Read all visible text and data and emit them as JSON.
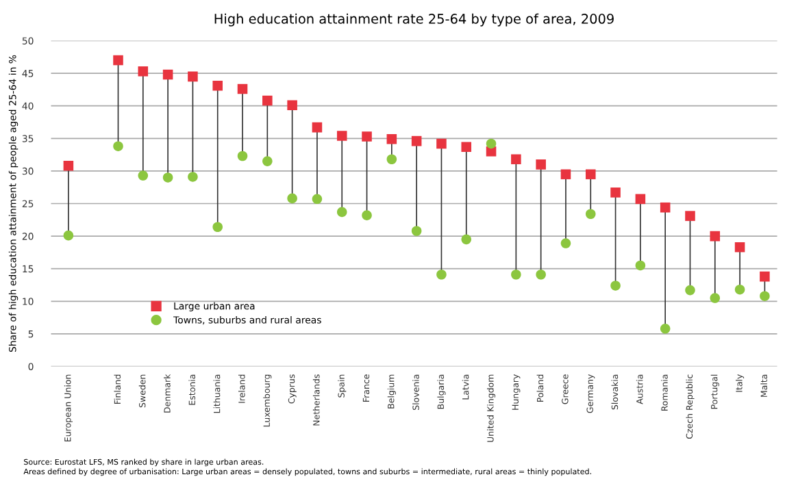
{
  "chart_data": {
    "type": "scatter",
    "title": "High education attainment rate 25-64 by type of area, 2009",
    "ylabel": "Share of high education attainment of people aged 25-64 in %",
    "categories": [
      "European Union",
      null,
      "Finland",
      "Sweden",
      "Denmark",
      "Estonia",
      "Lithuania",
      "Ireland",
      "Luxembourg",
      "Cyprus",
      "Netherlands",
      "Spain",
      "France",
      "Belgium",
      "Slovenia",
      "Bulgaria",
      "Latvia",
      "United Kingdom",
      "Hungary",
      "Poland",
      "Greece",
      "Germany",
      "Slovakia",
      "Austria",
      "Romania",
      "Czech Republic",
      "Portugal",
      "Italy",
      "Malta"
    ],
    "series": [
      {
        "name": "Large urban area",
        "color": "#e8343f",
        "marker": "square",
        "values": [
          30.8,
          null,
          47,
          45.3,
          44.8,
          44.5,
          43.1,
          42.6,
          40.8,
          40.1,
          36.7,
          35.4,
          35.3,
          34.9,
          34.6,
          34.2,
          33.7,
          33,
          31.8,
          31,
          29.5,
          29.5,
          26.7,
          25.7,
          24.4,
          23.1,
          20,
          18.3,
          13.8
        ]
      },
      {
        "name": "Towns, suburbs and rural areas",
        "color": "#8cc63f",
        "marker": "circle",
        "values": [
          20.1,
          null,
          33.8,
          29.3,
          29,
          29.1,
          21.4,
          32.3,
          31.5,
          25.8,
          25.7,
          23.7,
          23.2,
          31.8,
          20.8,
          14.1,
          19.5,
          34.2,
          14.1,
          14.1,
          18.9,
          23.4,
          12.4,
          15.5,
          5.8,
          11.7,
          10.5,
          11.8,
          10.8
        ]
      }
    ],
    "ylim": [
      0,
      50
    ],
    "yticks": [
      0,
      5,
      10,
      15,
      20,
      25,
      30,
      35,
      40,
      45,
      50
    ],
    "grid": "y",
    "legend": "bottom left",
    "annotations": [
      "Source: Eurostat LFS, MS ranked by share in large urban areas.",
      "Areas defined by degree of urbanisation: Large urban areas = densely populated, towns and suburbs = intermediate, rural areas = thinly populated."
    ]
  }
}
